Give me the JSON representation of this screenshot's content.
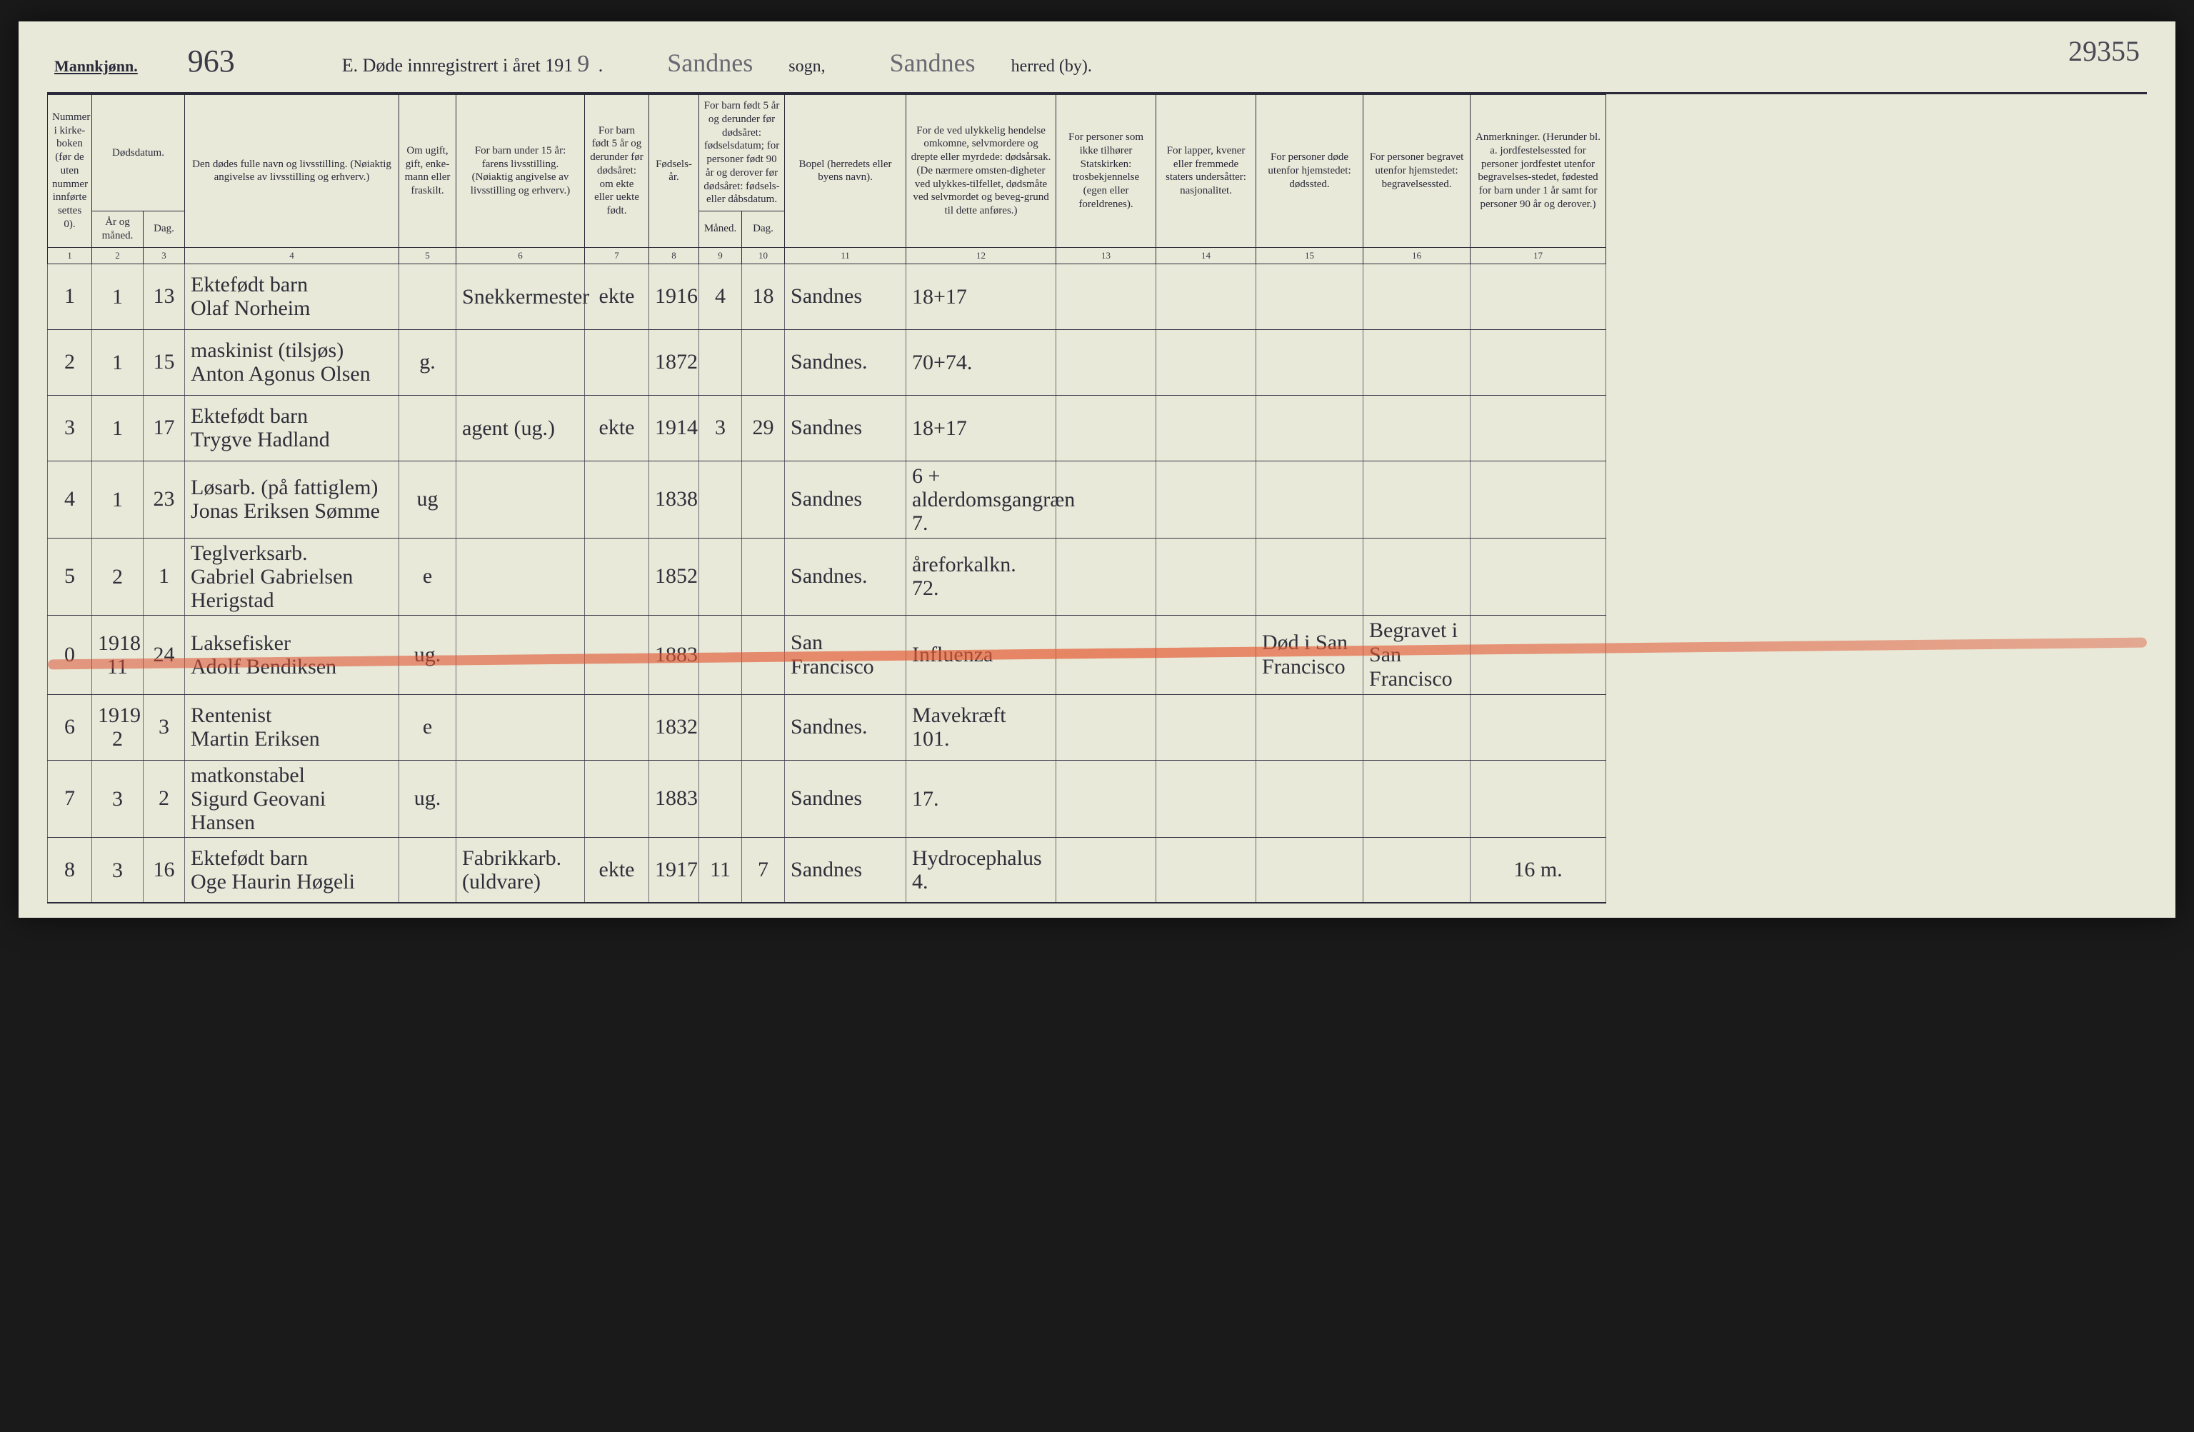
{
  "meta": {
    "gender_heading": "Mannkjønn.",
    "page_number_hand": "963",
    "title_prefix": "E. Døde innregistrert i året 191",
    "year_suffix_hand": "9",
    "title_period": " .",
    "sogn_hand": "Sandnes",
    "sogn_label": "sogn,",
    "herred_hand": "Sandnes",
    "herred_label": "herred (by).",
    "topright": "29355"
  },
  "colors": {
    "paper": "#e8e9d8",
    "ink": "#2a2a3a",
    "hand": "#2f2f3a",
    "red_strike": "#dc4628"
  },
  "header": {
    "c1": "Nummer i kirke-boken (før de uten nummer innførte settes 0).",
    "c2_top": "Dødsdatum.",
    "c2": "År og måned.",
    "c3": "Dag.",
    "c4": "Den dødes fulle navn og livsstilling.\n(Nøiaktig angivelse av livsstilling og erhverv.)",
    "c5": "Om ugift, gift, enke-mann eller fraskilt.",
    "c6": "For barn under 15 år:\nfarens livsstilling.\n(Nøiaktig angivelse av livsstilling og erhverv.)",
    "c7": "For barn født 5 år og derunder før dødsåret:\nom ekte eller uekte født.",
    "c8": "Fødsels-år.",
    "c9_top": "For barn født 5 år og derunder før dødsåret: fødselsdatum; for personer født 90 år og derover før dødsåret: fødsels- eller dåbsdatum.",
    "c9": "Måned.",
    "c10": "Dag.",
    "c11": "Bopel\n(herredets eller byens navn).",
    "c12": "For de ved ulykkelig hendelse omkomne, selvmordere og drepte eller myrdede: dødsårsak.\n(De nærmere omsten-digheter ved ulykkes-tilfellet, dødsmåte ved selvmordet og beveg-grund til dette anføres.)",
    "c13": "For personer som ikke tilhører Statskirken: trosbekjennelse (egen eller foreldrenes).",
    "c14": "For lapper, kvener eller fremmede staters undersåtter: nasjonalitet.",
    "c15": "For personer døde utenfor hjemstedet: dødssted.",
    "c16": "For personer begravet utenfor hjemstedet: begravelsessted.",
    "c17": "Anmerkninger.\n(Herunder bl. a. jordfestelsessted for personer jordfestet utenfor begravelses-stedet, fødested for barn under 1 år samt for personer 90 år og derover.)"
  },
  "colnums": [
    "1",
    "2",
    "3",
    "4",
    "5",
    "6",
    "7",
    "8",
    "9",
    "10",
    "11",
    "12",
    "13",
    "14",
    "15",
    "16",
    "17"
  ],
  "rows": [
    {
      "num": "1",
      "ym": "1",
      "dag": "13",
      "name": "Ektefødt barn\nOlaf Norheim",
      "status": "",
      "father": "Snekkermester",
      "ekte": "ekte",
      "faar": "1916",
      "mnd": "4",
      "fdag": "18",
      "bopel": "Sandnes",
      "cause": "18+17",
      "c13": "",
      "c14": "",
      "c15": "",
      "c16": "",
      "c17": ""
    },
    {
      "num": "2",
      "ym": "1",
      "dag": "15",
      "name": "maskinist (tilsjøs)\nAnton Agonus Olsen",
      "status": "g.",
      "father": "",
      "ekte": "",
      "faar": "1872",
      "mnd": "",
      "fdag": "",
      "bopel": "Sandnes.",
      "cause": "70+74.",
      "c13": "",
      "c14": "",
      "c15": "",
      "c16": "",
      "c17": ""
    },
    {
      "num": "3",
      "ym": "1",
      "dag": "17",
      "name": "Ektefødt barn\nTrygve Hadland",
      "status": "",
      "father": "agent (ug.)",
      "ekte": "ekte",
      "faar": "1914",
      "mnd": "3",
      "fdag": "29",
      "bopel": "Sandnes",
      "cause": "18+17",
      "c13": "",
      "c14": "",
      "c15": "",
      "c16": "",
      "c17": ""
    },
    {
      "num": "4",
      "ym": "1",
      "dag": "23",
      "name": "Løsarb. (på fattiglem)\nJonas Eriksen Sømme",
      "status": "ug",
      "father": "",
      "ekte": "",
      "faar": "1838",
      "mnd": "",
      "fdag": "",
      "bopel": "Sandnes",
      "cause": "6 +\nalderdomsgangræn\n7.",
      "c13": "",
      "c14": "",
      "c15": "",
      "c16": "",
      "c17": ""
    },
    {
      "num": "5",
      "ym": "2",
      "dag": "1",
      "name": "Teglverksarb.\nGabriel Gabrielsen Herigstad",
      "status": "e",
      "father": "",
      "ekte": "",
      "faar": "1852",
      "mnd": "",
      "fdag": "",
      "bopel": "Sandnes.",
      "cause": "åreforkalkn.\n72.",
      "c13": "",
      "c14": "",
      "c15": "",
      "c16": "",
      "c17": ""
    },
    {
      "num": "0",
      "ym": "1918\n11",
      "dag": "24",
      "name": "Laksefisker\nAdolf Bendiksen",
      "status": "ug.",
      "father": "",
      "ekte": "",
      "faar": "1883",
      "mnd": "",
      "fdag": "",
      "bopel": "San Francisco",
      "cause": "Influenza",
      "c13": "",
      "c14": "",
      "c15": "Død i San\nFrancisco",
      "c16": "Begravet i\nSan Francisco",
      "c17": "",
      "struck": true
    },
    {
      "num": "6",
      "ym": "1919\n2",
      "dag": "3",
      "name": "Rentenist\nMartin Eriksen",
      "status": "e",
      "father": "",
      "ekte": "",
      "faar": "1832",
      "mnd": "",
      "fdag": "",
      "bopel": "Sandnes.",
      "cause": "Mavekræft\n101.",
      "c13": "",
      "c14": "",
      "c15": "",
      "c16": "",
      "c17": ""
    },
    {
      "num": "7",
      "ym": "3",
      "dag": "2",
      "name": "matkonstabel\nSigurd Geovani Hansen",
      "status": "ug.",
      "father": "",
      "ekte": "",
      "faar": "1883",
      "mnd": "",
      "fdag": "",
      "bopel": "Sandnes",
      "cause": "17.",
      "c13": "",
      "c14": "",
      "c15": "",
      "c16": "",
      "c17": ""
    },
    {
      "num": "8",
      "ym": "3",
      "dag": "16",
      "name": "Ektefødt barn\nOge Haurin Høgeli",
      "status": "",
      "father": "Fabrikkarb.\n(uldvare)",
      "ekte": "ekte",
      "faar": "1917",
      "mnd": "11",
      "fdag": "7",
      "bopel": "Sandnes",
      "cause": "Hydrocephalus\n4.",
      "c13": "",
      "c14": "",
      "c15": "",
      "c16": "",
      "c17": "16 m."
    }
  ]
}
